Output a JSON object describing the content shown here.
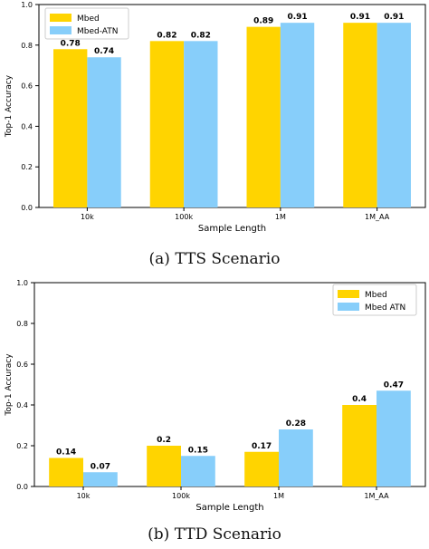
{
  "colors": {
    "mbed": "#FFD400",
    "mbed_atn": "#87CEFA"
  },
  "chart_data": [
    {
      "type": "bar",
      "caption": "(a) TTS Scenario",
      "categories": [
        "10k",
        "100k",
        "1M",
        "1M_AA"
      ],
      "series": [
        {
          "name": "Mbed",
          "values": [
            0.78,
            0.82,
            0.89,
            0.91
          ]
        },
        {
          "name": "Mbed-ATN",
          "values": [
            0.74,
            0.82,
            0.91,
            0.91
          ]
        }
      ],
      "xlabel": "Sample Length",
      "ylabel": "Top-1 Accuracy",
      "ylim": [
        0,
        1.0
      ],
      "yticks": [
        "0.0",
        "0.2",
        "0.4",
        "0.6",
        "0.8",
        "1.0"
      ],
      "legend": "top-left",
      "grid": false
    },
    {
      "type": "bar",
      "caption": "(b) TTD Scenario",
      "categories": [
        "10k",
        "100k",
        "1M",
        "1M_AA"
      ],
      "series": [
        {
          "name": "Mbed",
          "values": [
            0.14,
            0.2,
            0.17,
            0.4
          ]
        },
        {
          "name": "Mbed ATN",
          "values": [
            0.07,
            0.15,
            0.28,
            0.47
          ]
        }
      ],
      "xlabel": "Sample Length",
      "ylabel": "Top-1 Accuracy",
      "ylim": [
        0,
        1.0
      ],
      "yticks": [
        "0.0",
        "0.2",
        "0.4",
        "0.6",
        "0.8",
        "1.0"
      ],
      "legend": "top-right",
      "grid": false
    }
  ]
}
